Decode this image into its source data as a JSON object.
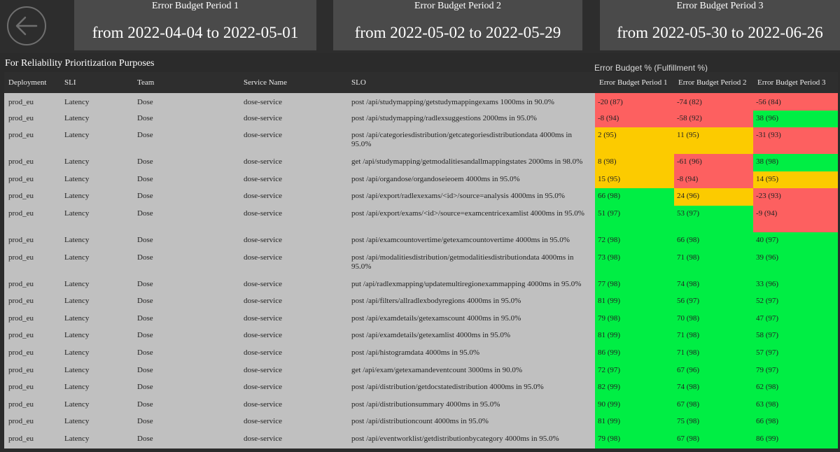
{
  "periods": [
    {
      "title": "Error Budget Period 1",
      "range": "from 2022-04-04 to 2022-05-01"
    },
    {
      "title": "Error Budget Period 2",
      "range": "from 2022-05-02 to 2022-05-29"
    },
    {
      "title": "Error Budget Period 3",
      "range": "from 2022-05-30 to 2022-06-26"
    }
  ],
  "back_icon": "arrow-left-icon",
  "section_title": "For Reliability Prioritization Purposes",
  "group_label": "Error Budget % (Fulfillment %)",
  "colors": {
    "red": "#fd6060",
    "amber": "#fccb00",
    "green": "#00ee44",
    "row_bg": "#c0c0c0",
    "header_bg": "#2e2e2e",
    "card_bg": "#4a4a4a"
  },
  "table": {
    "columns": [
      "Deployment",
      "SLI",
      "Team",
      "Service Name",
      "SLO",
      "Error Budget Period 1",
      "Error Budget Period 2",
      "Error Budget Period 3"
    ],
    "rows": [
      {
        "deployment": "prod_eu",
        "sli": "Latency",
        "team": "Dose",
        "service": "dose-service",
        "slo": "post /api/studymapping/getstudymappingexams 1000ms in 90.0%",
        "p1": "-20 (87)",
        "p1s": "red",
        "p2": "-74 (82)",
        "p2s": "red",
        "p3": "-56 (84)",
        "p3s": "red"
      },
      {
        "deployment": "prod_eu",
        "sli": "Latency",
        "team": "Dose",
        "service": "dose-service",
        "slo": "post /api/studymapping/radlexsuggestions 2000ms in 95.0%",
        "p1": "-8 (94)",
        "p1s": "red",
        "p2": "-58 (92)",
        "p2s": "red",
        "p3": "38 (96)",
        "p3s": "green"
      },
      {
        "deployment": "prod_eu",
        "sli": "Latency",
        "team": "Dose",
        "service": "dose-service",
        "slo": "post /api/categoriesdistribution/getcategoriesdistributiondata 4000ms in 95.0%",
        "p1": "2 (95)",
        "p1s": "amber",
        "p2": "11 (95)",
        "p2s": "amber",
        "p3": "-31 (93)",
        "p3s": "red",
        "tall": true
      },
      {
        "deployment": "prod_eu",
        "sli": "Latency",
        "team": "Dose",
        "service": "dose-service",
        "slo": "get /api/studymapping/getmodalitiesandallmappingstates 2000ms in 98.0%",
        "p1": "8 (98)",
        "p1s": "amber",
        "p2": "-61 (96)",
        "p2s": "red",
        "p3": "38 (98)",
        "p3s": "green"
      },
      {
        "deployment": "prod_eu",
        "sli": "Latency",
        "team": "Dose",
        "service": "dose-service",
        "slo": "post /api/organdose/organdoseieoem 4000ms in 95.0%",
        "p1": "15 (95)",
        "p1s": "amber",
        "p2": "-8 (94)",
        "p2s": "red",
        "p3": "14 (95)",
        "p3s": "amber"
      },
      {
        "deployment": "prod_eu",
        "sli": "Latency",
        "team": "Dose",
        "service": "dose-service",
        "slo": "post /api/export/radlexexams/<id>/source=analysis 4000ms in 95.0%",
        "p1": "66 (98)",
        "p1s": "green",
        "p2": "24 (96)",
        "p2s": "amber",
        "p3": "-23 (93)",
        "p3s": "red"
      },
      {
        "deployment": "prod_eu",
        "sli": "Latency",
        "team": "Dose",
        "service": "dose-service",
        "slo": "post /api/export/exams/<id>/source=examcentricexamlist 4000ms in 95.0%",
        "p1": "51 (97)",
        "p1s": "green",
        "p2": "53 (97)",
        "p2s": "green",
        "p3": "-9 (94)",
        "p3s": "red",
        "tall": true
      },
      {
        "deployment": "prod_eu",
        "sli": "Latency",
        "team": "Dose",
        "service": "dose-service",
        "slo": "post /api/examcountovertime/getexamcountovertime 4000ms in 95.0%",
        "p1": "72 (98)",
        "p1s": "green",
        "p2": "66 (98)",
        "p2s": "green",
        "p3": "40 (97)",
        "p3s": "green"
      },
      {
        "deployment": "prod_eu",
        "sli": "Latency",
        "team": "Dose",
        "service": "dose-service",
        "slo": "post /api/modalitiesdistribution/getmodalitiesdistributiondata 4000ms in 95.0%",
        "p1": "73 (98)",
        "p1s": "green",
        "p2": "71 (98)",
        "p2s": "green",
        "p3": "39 (96)",
        "p3s": "green",
        "tall": true
      },
      {
        "deployment": "prod_eu",
        "sli": "Latency",
        "team": "Dose",
        "service": "dose-service",
        "slo": "put /api/radlexmapping/updatemultiregionexammapping 4000ms in 95.0%",
        "p1": "77 (98)",
        "p1s": "green",
        "p2": "74 (98)",
        "p2s": "green",
        "p3": "33 (96)",
        "p3s": "green"
      },
      {
        "deployment": "prod_eu",
        "sli": "Latency",
        "team": "Dose",
        "service": "dose-service",
        "slo": "post /api/filters/allradlexbodyregions 4000ms in 95.0%",
        "p1": "81 (99)",
        "p1s": "green",
        "p2": "56 (97)",
        "p2s": "green",
        "p3": "52 (97)",
        "p3s": "green"
      },
      {
        "deployment": "prod_eu",
        "sli": "Latency",
        "team": "Dose",
        "service": "dose-service",
        "slo": "post /api/examdetails/getexamscount 4000ms in 95.0%",
        "p1": "79 (98)",
        "p1s": "green",
        "p2": "70 (98)",
        "p2s": "green",
        "p3": "47 (97)",
        "p3s": "green"
      },
      {
        "deployment": "prod_eu",
        "sli": "Latency",
        "team": "Dose",
        "service": "dose-service",
        "slo": "post /api/examdetails/getexamlist 4000ms in 95.0%",
        "p1": "81 (99)",
        "p1s": "green",
        "p2": "71 (98)",
        "p2s": "green",
        "p3": "58 (97)",
        "p3s": "green"
      },
      {
        "deployment": "prod_eu",
        "sli": "Latency",
        "team": "Dose",
        "service": "dose-service",
        "slo": "post /api/histogramdata 4000ms in 95.0%",
        "p1": "86 (99)",
        "p1s": "green",
        "p2": "71 (98)",
        "p2s": "green",
        "p3": "57 (97)",
        "p3s": "green"
      },
      {
        "deployment": "prod_eu",
        "sli": "Latency",
        "team": "Dose",
        "service": "dose-service",
        "slo": "get /api/exam/getexamandeventcount 3000ms in 90.0%",
        "p1": "72 (97)",
        "p1s": "green",
        "p2": "67 (96)",
        "p2s": "green",
        "p3": "79 (97)",
        "p3s": "green"
      },
      {
        "deployment": "prod_eu",
        "sli": "Latency",
        "team": "Dose",
        "service": "dose-service",
        "slo": "post /api/distribution/getdocstatedistribution 4000ms in 95.0%",
        "p1": "82 (99)",
        "p1s": "green",
        "p2": "74 (98)",
        "p2s": "green",
        "p3": "62 (98)",
        "p3s": "green"
      },
      {
        "deployment": "prod_eu",
        "sli": "Latency",
        "team": "Dose",
        "service": "dose-service",
        "slo": "post /api/distributionsummary 4000ms in 95.0%",
        "p1": "90 (99)",
        "p1s": "green",
        "p2": "67 (98)",
        "p2s": "green",
        "p3": "63 (98)",
        "p3s": "green"
      },
      {
        "deployment": "prod_eu",
        "sli": "Latency",
        "team": "Dose",
        "service": "dose-service",
        "slo": "post /api/distributioncount 4000ms in 95.0%",
        "p1": "81 (99)",
        "p1s": "green",
        "p2": "75 (98)",
        "p2s": "green",
        "p3": "66 (98)",
        "p3s": "green"
      },
      {
        "deployment": "prod_eu",
        "sli": "Latency",
        "team": "Dose",
        "service": "dose-service",
        "slo": "post /api/eventworklist/getdistributionbycategory 4000ms in 95.0%",
        "p1": "79 (98)",
        "p1s": "green",
        "p2": "67 (98)",
        "p2s": "green",
        "p3": "86 (99)",
        "p3s": "green"
      }
    ]
  }
}
